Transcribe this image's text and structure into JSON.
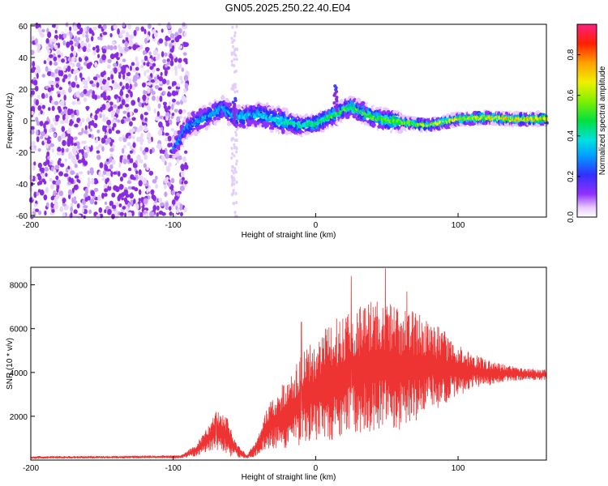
{
  "title": "GN05.2025.250.22.40.E04",
  "chart_data": [
    {
      "type": "heatmap",
      "name": "spectrogram",
      "xlabel": "Height of straight line (km)",
      "ylabel": "Frequency (Hz)",
      "xlim": [
        -200,
        162
      ],
      "ylim": [
        -61,
        61
      ],
      "xticks": [
        -200,
        -100,
        0,
        100
      ],
      "yticks": [
        -60,
        -40,
        -20,
        0,
        20,
        40,
        60
      ],
      "noise_region": [
        -200,
        -90
      ],
      "ridge": {
        "description_points_x": [
          -100,
          -90,
          -75,
          -65,
          -55,
          -40,
          -25,
          -10,
          0,
          12,
          25,
          40,
          60,
          80,
          100,
          120,
          140,
          162
        ],
        "frequency_hz": [
          -18,
          -4,
          3,
          8,
          2,
          4,
          0,
          -3,
          -2,
          3,
          9,
          2,
          -1,
          -3,
          1,
          2,
          1,
          1
        ]
      },
      "features": [
        {
          "x": 14,
          "freq_hz": 22,
          "label": ""
        },
        {
          "x": -57,
          "freq_hz": 14,
          "label": ""
        }
      ],
      "colorbar": {
        "label": "Normalized spectral amplitude",
        "ticks": [
          0.0,
          0.2,
          0.4,
          0.6,
          0.8
        ],
        "tick_labels": [
          "0.0",
          "0.2",
          "0.4",
          "0.6",
          "0.8"
        ],
        "range": [
          0,
          0.95
        ]
      }
    },
    {
      "type": "line",
      "name": "snr",
      "xlabel": "Height of straight line (km)",
      "ylabel": "SNR (10 * v/v)",
      "xlim": [
        -200,
        162
      ],
      "ylim": [
        0,
        8800
      ],
      "xticks": [
        -200,
        -100,
        0,
        100
      ],
      "yticks": [
        2000,
        4000,
        6000,
        8000
      ],
      "color": "#ee3333",
      "envelope": {
        "x": [
          -200,
          -150,
          -95,
          -85,
          -75,
          -70,
          -62,
          -55,
          -48,
          -40,
          -35,
          -28,
          -20,
          -10,
          0,
          10,
          20,
          30,
          40,
          50,
          60,
          70,
          80,
          90,
          100,
          110,
          120,
          130,
          140,
          150,
          162
        ],
        "mean": [
          120,
          130,
          150,
          400,
          1000,
          1400,
          1100,
          400,
          150,
          700,
          1400,
          1800,
          2100,
          2700,
          3200,
          3500,
          3900,
          4100,
          4300,
          4300,
          4200,
          4250,
          4300,
          4200,
          4100,
          4050,
          4000,
          3950,
          3950,
          3900,
          3900
        ],
        "amp": [
          60,
          60,
          70,
          250,
          600,
          900,
          900,
          300,
          80,
          500,
          900,
          1300,
          1600,
          2100,
          2400,
          2700,
          2900,
          3000,
          3100,
          3000,
          2800,
          2500,
          2100,
          1700,
          1200,
          800,
          600,
          450,
          350,
          280,
          250
        ]
      },
      "peaks": [
        {
          "x": 25,
          "y": 8400
        },
        {
          "x": 49,
          "y": 8750
        },
        {
          "x": 37,
          "y": 7100
        },
        {
          "x": 64,
          "y": 7700
        },
        {
          "x": -10,
          "y": 6300
        },
        {
          "x": -62,
          "y": 1900
        },
        {
          "x": -70,
          "y": 1650
        }
      ]
    }
  ]
}
